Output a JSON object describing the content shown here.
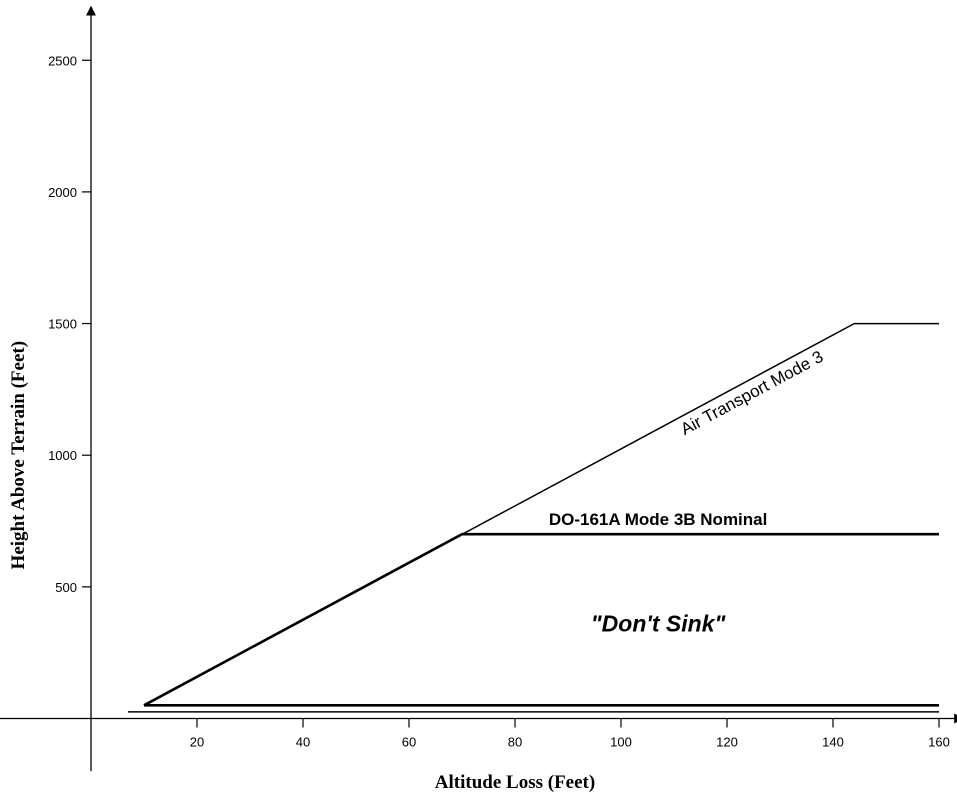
{
  "chart_data": {
    "type": "line",
    "xlabel": "Altitude Loss (Feet)",
    "ylabel": "Height Above Terrain (Feet)",
    "xlim": [
      -20,
      164
    ],
    "ylim": [
      -200,
      2700
    ],
    "x_ticks": [
      20,
      40,
      60,
      80,
      100,
      120,
      140,
      160
    ],
    "y_ticks": [
      500,
      1000,
      1500,
      2000,
      2500
    ],
    "grid": false,
    "series": [
      {
        "name": "Air Transport Mode 3",
        "points": [
          [
            10,
            50
          ],
          [
            144,
            1500
          ],
          [
            160,
            1500
          ]
        ],
        "bold": false
      },
      {
        "name": "DO-161A Mode 3B Nominal",
        "points": [
          [
            10,
            50
          ],
          [
            70,
            700
          ],
          [
            160,
            700
          ]
        ],
        "bold": true
      },
      {
        "name": "",
        "points": [
          [
            10,
            50
          ],
          [
            160,
            50
          ]
        ],
        "bold": true
      },
      {
        "name": "",
        "points": [
          [
            7,
            25
          ],
          [
            160,
            25
          ]
        ],
        "bold": false
      }
    ],
    "annotations": [
      {
        "text": "\"Don't Sink\"",
        "x": 107,
        "y": 330
      }
    ]
  }
}
